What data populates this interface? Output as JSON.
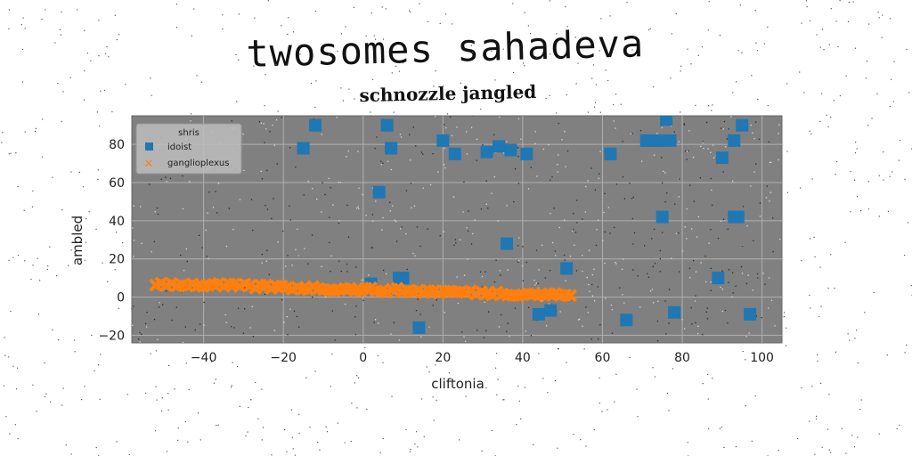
{
  "suptitle": "twosomes sahadeva",
  "chart_data": {
    "type": "scatter",
    "title": "schnozzle jangled",
    "xlabel": "cliftonia",
    "ylabel": "ambled",
    "xlim": [
      -58,
      105
    ],
    "ylim": [
      -24,
      95
    ],
    "xticks": [
      -40,
      -20,
      0,
      20,
      40,
      60,
      80,
      100
    ],
    "yticks": [
      -20,
      0,
      20,
      40,
      60,
      80
    ],
    "grid": true,
    "legend": {
      "title": "shris",
      "position": "top-left"
    },
    "series": [
      {
        "name": "idoist",
        "color": "#1f77b4",
        "marker": "square",
        "x": [
          -12,
          -15,
          6,
          7,
          4,
          9,
          14,
          20,
          23,
          31,
          34,
          37,
          41,
          36,
          51,
          44,
          47,
          10,
          2,
          62,
          66,
          71,
          74,
          77,
          76,
          75,
          78,
          90,
          93,
          95,
          94,
          89,
          97,
          93
        ],
        "y": [
          90,
          78,
          90,
          78,
          55,
          10,
          -16,
          82,
          75,
          76,
          79,
          77,
          75,
          28,
          15,
          -9,
          -7,
          10,
          7,
          75,
          -12,
          82,
          82,
          82,
          93,
          42,
          -8,
          73,
          82,
          90,
          42,
          10,
          -9,
          42
        ]
      },
      {
        "name": "ganglioplexus",
        "color": "#ff7f0e",
        "marker": "x",
        "line_fit": {
          "x_start": -52,
          "x_end": 52,
          "y_start": 7,
          "y_end": 1,
          "count": 80,
          "spread": 2.2
        }
      }
    ]
  }
}
